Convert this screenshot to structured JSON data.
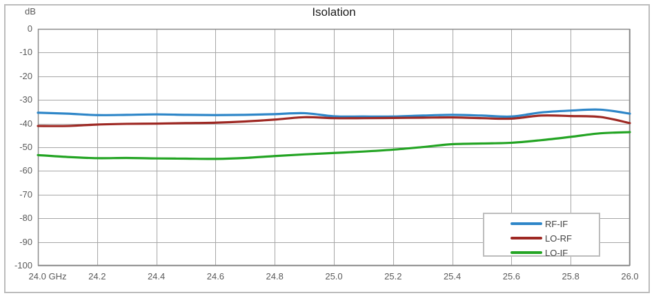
{
  "title": "Isolation",
  "unit_label": "dB",
  "colors": {
    "grid": "#a6a6a6",
    "plot_border": "#8c8c8c",
    "frame_border": "#bcbcbc",
    "axis_text": "#595959",
    "title_text": "#1a1a1a",
    "background": "#ffffff",
    "series_rf_if": "#2e86c8",
    "series_lo_rf": "#9e2823",
    "series_lo_if": "#23a423"
  },
  "chart_data": {
    "type": "line",
    "title": "Isolation",
    "xlabel": "GHz",
    "ylabel": "dB",
    "xlim": [
      24.0,
      26.0
    ],
    "ylim": [
      -100,
      0
    ],
    "grid": true,
    "legend_position": "bottom-right",
    "x_ticks": [
      24.0,
      24.2,
      24.4,
      24.6,
      24.8,
      25.0,
      25.2,
      25.4,
      25.6,
      25.8,
      26.0
    ],
    "x_tick_labels": [
      "24.0 GHz",
      "24.2",
      "24.4",
      "24.6",
      "24.8",
      "25.0",
      "25.2",
      "25.4",
      "25.6",
      "25.8",
      "26.0"
    ],
    "y_ticks": [
      0,
      -10,
      -20,
      -30,
      -40,
      -50,
      -60,
      -70,
      -80,
      -90,
      -100
    ],
    "y_tick_labels": [
      "0",
      "-10",
      "-20",
      "-30",
      "-40",
      "-50",
      "-60",
      "-70",
      "-80",
      "-90",
      "-100"
    ],
    "x": [
      24.0,
      24.1,
      24.2,
      24.3,
      24.4,
      24.5,
      24.6,
      24.7,
      24.8,
      24.9,
      25.0,
      25.1,
      25.2,
      25.3,
      25.4,
      25.5,
      25.6,
      25.7,
      25.8,
      25.9,
      26.0
    ],
    "series": [
      {
        "name": "RF-IF",
        "color": "#2e86c8",
        "values": [
          -35.4,
          -35.8,
          -36.4,
          -36.3,
          -36.1,
          -36.3,
          -36.4,
          -36.3,
          -36.0,
          -35.6,
          -36.9,
          -37.0,
          -37.0,
          -36.6,
          -36.3,
          -36.6,
          -37.0,
          -35.3,
          -34.5,
          -34.1,
          -35.8
        ]
      },
      {
        "name": "LO-RF",
        "color": "#9e2823",
        "values": [
          -41.0,
          -41.0,
          -40.4,
          -40.1,
          -40.0,
          -39.8,
          -39.6,
          -39.1,
          -38.3,
          -37.3,
          -37.7,
          -37.7,
          -37.6,
          -37.5,
          -37.4,
          -37.7,
          -37.9,
          -36.6,
          -36.8,
          -37.2,
          -39.8
        ]
      },
      {
        "name": "LO-IF",
        "color": "#23a423",
        "values": [
          -53.3,
          -54.1,
          -54.6,
          -54.5,
          -54.7,
          -54.8,
          -54.9,
          -54.5,
          -53.7,
          -53.0,
          -52.4,
          -51.8,
          -51.0,
          -49.9,
          -48.7,
          -48.4,
          -48.1,
          -47.0,
          -45.6,
          -44.1,
          -43.6
        ]
      }
    ]
  }
}
